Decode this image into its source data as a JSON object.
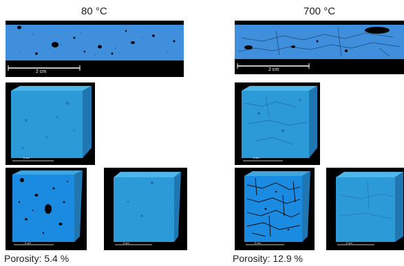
{
  "left": {
    "title_number": "80",
    "title_unit": "°C",
    "scale_label": "2 cm",
    "porosity": "Porosity: 5.4 %"
  },
  "right": {
    "title_number": "700",
    "title_unit": "°C",
    "scale_label": "2 cm",
    "porosity": "Porosity: 12.9 %"
  },
  "render_scale_label": "2 cm",
  "colors": {
    "background": "#000000",
    "block_face": "#2d9ad8",
    "block_top": "#4fb6e8",
    "block_side": "#1f76b0",
    "slice_color": "#3f8fdd",
    "pores": "#000000",
    "scale_bar": "#ffffff"
  }
}
